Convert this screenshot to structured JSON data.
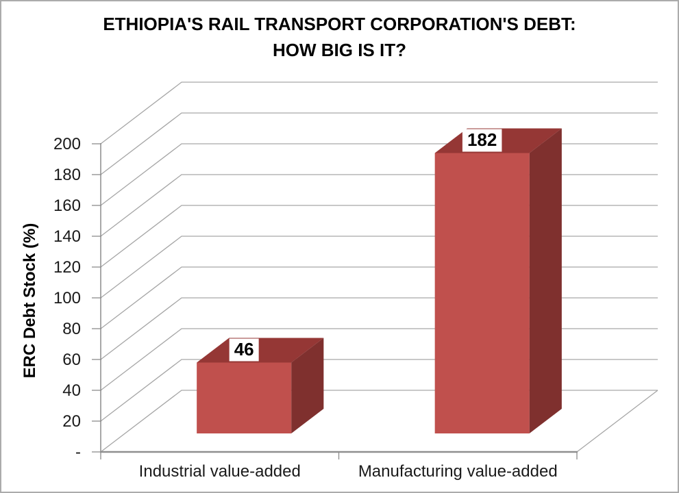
{
  "chart_data": {
    "type": "bar",
    "variant": "3d-column",
    "title": "ETHIOPIA'S RAIL TRANSPORT CORPORATION'S DEBT: HOW BIG IS IT?",
    "title_lines": [
      "ETHIOPIA'S RAIL TRANSPORT CORPORATION'S DEBT:",
      "HOW BIG IS IT?"
    ],
    "categories": [
      "Industrial value-added",
      "Manufacturing value-added"
    ],
    "values": [
      46,
      182
    ],
    "data_labels": [
      "46",
      "182"
    ],
    "xlabel": "",
    "ylabel": "ERC Debt Stock (%)",
    "ylim": [
      0,
      200
    ],
    "ytick_step": 20,
    "ytick_labels": [
      "-",
      "20",
      "40",
      "60",
      "80",
      "100",
      "120",
      "140",
      "160",
      "180",
      "200"
    ],
    "grid": true,
    "legend": false
  },
  "colors": {
    "bar_front": "#C0504D",
    "bar_top": "#953735",
    "bar_side": "#7F302E",
    "gridline": "#A6A6A6",
    "axis": "#8C8C8C",
    "baseline": "#8F8F8F",
    "data_label_bg": "#FFFFFF",
    "text": "#000000",
    "frame_border": "#ABABAB"
  }
}
